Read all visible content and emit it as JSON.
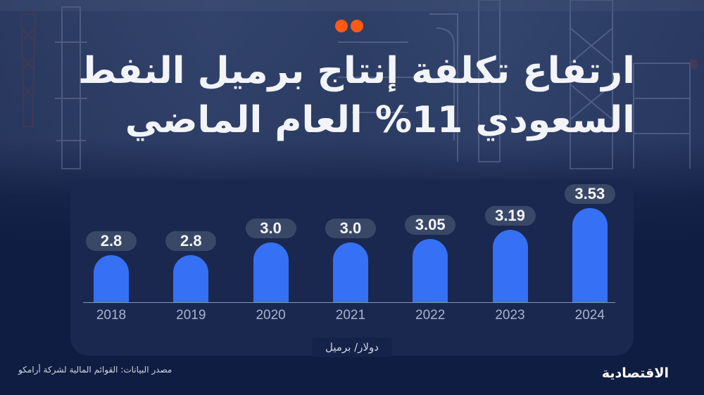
{
  "title": {
    "line1": "ارتفاع تكلفة إنتاج برميل النفط",
    "line2": "السعودي 11% العام الماضي"
  },
  "decoration": {
    "dot_color": "#ff5a14",
    "dot_count": 2
  },
  "colors": {
    "background": "#101d42",
    "card": "#1a2850",
    "bar": "#3670f5",
    "pill": "#3a4868",
    "year_text": "#aab3c8"
  },
  "chart_data": {
    "type": "bar",
    "title": "ارتفاع تكلفة إنتاج برميل النفط السعودي 11% العام الماضي",
    "categories": [
      "2018",
      "2019",
      "2020",
      "2021",
      "2022",
      "2023",
      "2024"
    ],
    "values": [
      2.8,
      2.8,
      3.0,
      3.0,
      3.05,
      3.19,
      3.53
    ],
    "value_labels": [
      "2.8",
      "2.8",
      "3.0",
      "3.0",
      "3.05",
      "3.19",
      "3.53"
    ],
    "xlabel": "",
    "ylabel": "دولار/ برميل",
    "unit": "دولار/ برميل",
    "grid": false,
    "legend": null,
    "bar_color": "#3670f5"
  },
  "footer": {
    "source": "مصدر البيانات: القوائم المالية لشركة أرامكو",
    "logo": "الاقتصادية"
  }
}
